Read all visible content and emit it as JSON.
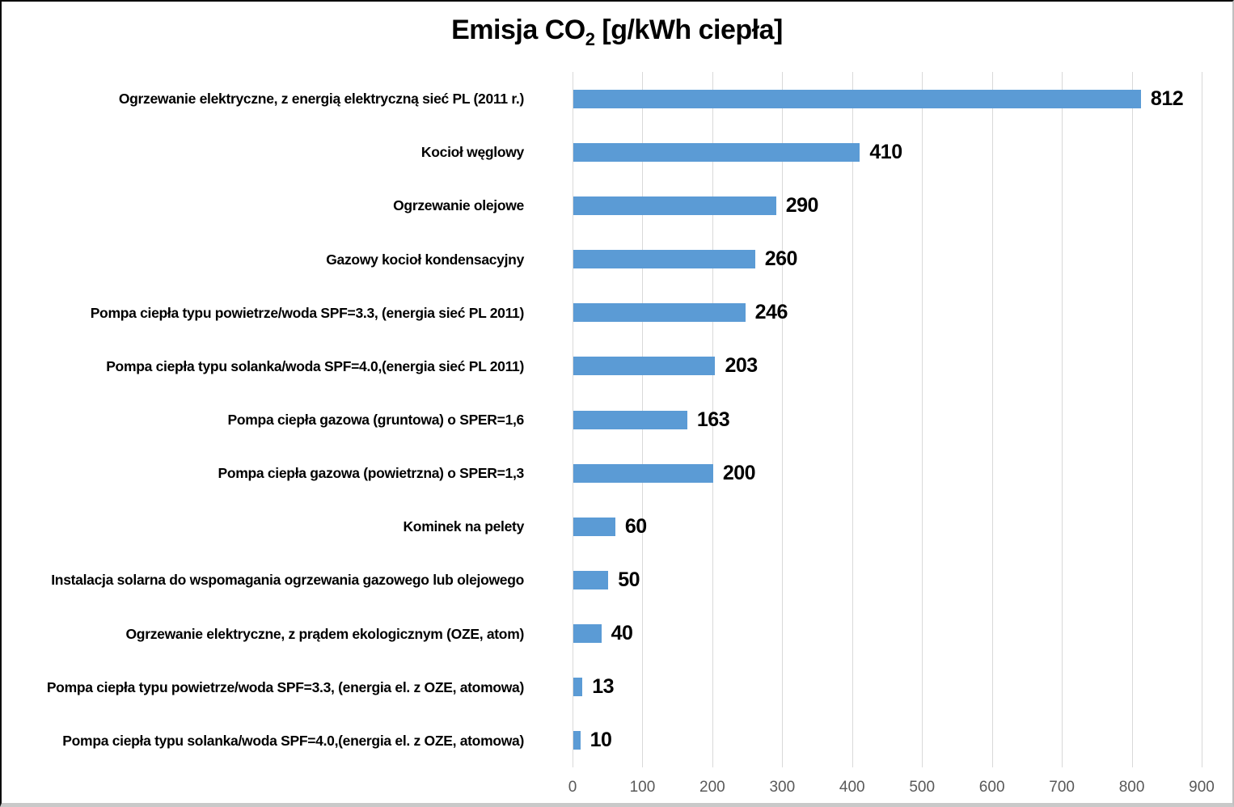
{
  "chart_data": {
    "type": "bar",
    "orientation": "horizontal",
    "title": {
      "prefix": "Emisja CO",
      "subscript": "2",
      "suffix": " [g/kWh ciepła]"
    },
    "categories": [
      "Ogrzewanie elektryczne, z energią elektryczną sieć PL (2011 r.)",
      "Kocioł węglowy",
      "Ogrzewanie olejowe",
      "Gazowy kocioł kondensacyjny",
      "Pompa ciepła typu powietrze/woda SPF=3.3, (energia sieć PL 2011)",
      "Pompa ciepła typu solanka/woda SPF=4.0,(energia sieć PL 2011)",
      "Pompa ciepła gazowa (gruntowa) o SPER=1,6",
      "Pompa ciepła gazowa (powietrzna) o SPER=1,3",
      "Kominek na pelety",
      "Instalacja solarna do wspomagania ogrzewania gazowego lub olejowego",
      "Ogrzewanie elektryczne, z prądem ekologicznym (OZE, atom)",
      "Pompa ciepła typu powietrze/woda SPF=3.3, (energia el. z OZE, atomowa)",
      "Pompa ciepła typu solanka/woda SPF=4.0,(energia el. z OZE, atomowa)"
    ],
    "values": [
      812,
      410,
      290,
      260,
      246,
      203,
      163,
      200,
      60,
      50,
      40,
      13,
      10
    ],
    "xlim": [
      0,
      900
    ],
    "x_ticks": [
      "0",
      "100",
      "200",
      "300",
      "400",
      "500",
      "600",
      "700",
      "800",
      "900"
    ],
    "grid": "vertical-only",
    "legend": "none",
    "colors": {
      "bar": "#5B9BD5",
      "gridline": "#D9D9D9",
      "tick_label": "#595959",
      "data_label": "#000000",
      "background": "#FFFFFF"
    }
  }
}
